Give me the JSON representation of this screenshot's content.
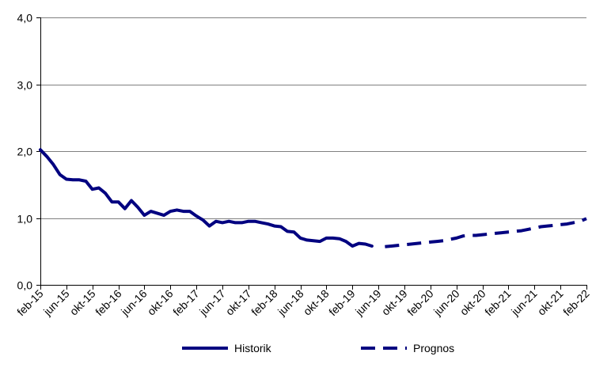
{
  "chart_data": {
    "type": "line",
    "title": "",
    "xlabel": "",
    "ylabel": "",
    "ylim": [
      0,
      4
    ],
    "yticks": [
      "0,0",
      "1,0",
      "2,0",
      "3,0",
      "4,0"
    ],
    "y_tick_values": [
      0,
      1,
      2,
      3,
      4
    ],
    "grid": "horizontal",
    "legend_position": "bottom",
    "x_tick_labels": [
      "feb-15",
      "jun-15",
      "okt-15",
      "feb-16",
      "jun-16",
      "okt-16",
      "feb-17",
      "jun-17",
      "okt-17",
      "feb-18",
      "jun-18",
      "okt-18",
      "feb-19",
      "jun-19",
      "okt-19",
      "feb-20",
      "jun-20",
      "okt-20",
      "feb-21",
      "jun-21",
      "okt-21",
      "feb-22"
    ],
    "x_tick_months": [
      0,
      4,
      8,
      12,
      16,
      20,
      24,
      28,
      32,
      36,
      40,
      44,
      48,
      52,
      56,
      60,
      64,
      68,
      72,
      76,
      80,
      84
    ],
    "x_range_months": [
      0,
      84
    ],
    "colors": {
      "series": "#000080",
      "grid": "#808080",
      "axis": "#000000"
    },
    "series": [
      {
        "name": "Historik",
        "style": "solid",
        "x": [
          0,
          1,
          2,
          3,
          4,
          5,
          6,
          7,
          8,
          9,
          10,
          11,
          12,
          13,
          14,
          15,
          16,
          17,
          18,
          19,
          20,
          21,
          22,
          23,
          24,
          25,
          26,
          27,
          28,
          29,
          30,
          31,
          32,
          33,
          34,
          35,
          36,
          37,
          38,
          39,
          40,
          41,
          42,
          43,
          44,
          45,
          46,
          47,
          48,
          49,
          50,
          51
        ],
        "values": [
          2.02,
          1.92,
          1.8,
          1.65,
          1.58,
          1.57,
          1.57,
          1.55,
          1.43,
          1.45,
          1.37,
          1.24,
          1.24,
          1.14,
          1.26,
          1.16,
          1.04,
          1.1,
          1.07,
          1.04,
          1.1,
          1.12,
          1.1,
          1.1,
          1.03,
          0.97,
          0.88,
          0.95,
          0.93,
          0.95,
          0.93,
          0.93,
          0.95,
          0.95,
          0.93,
          0.91,
          0.88,
          0.87,
          0.8,
          0.79,
          0.7,
          0.67,
          0.66,
          0.65,
          0.7,
          0.7,
          0.69,
          0.65,
          0.58,
          0.62,
          0.61,
          0.58
        ]
      },
      {
        "name": "Prognos",
        "style": "dashed",
        "x": [
          53,
          54,
          55,
          56,
          57,
          58,
          59,
          60,
          61,
          62,
          63,
          64,
          65,
          66,
          67,
          68,
          69,
          70,
          71,
          72,
          73,
          74,
          75,
          76,
          77,
          78,
          79,
          80,
          81,
          82,
          83,
          84
        ],
        "values": [
          0.57,
          0.58,
          0.59,
          0.6,
          0.61,
          0.62,
          0.63,
          0.64,
          0.65,
          0.66,
          0.68,
          0.7,
          0.73,
          0.74,
          0.74,
          0.75,
          0.76,
          0.77,
          0.78,
          0.79,
          0.8,
          0.81,
          0.83,
          0.85,
          0.87,
          0.88,
          0.89,
          0.9,
          0.91,
          0.93,
          0.95,
          0.99
        ]
      }
    ]
  }
}
